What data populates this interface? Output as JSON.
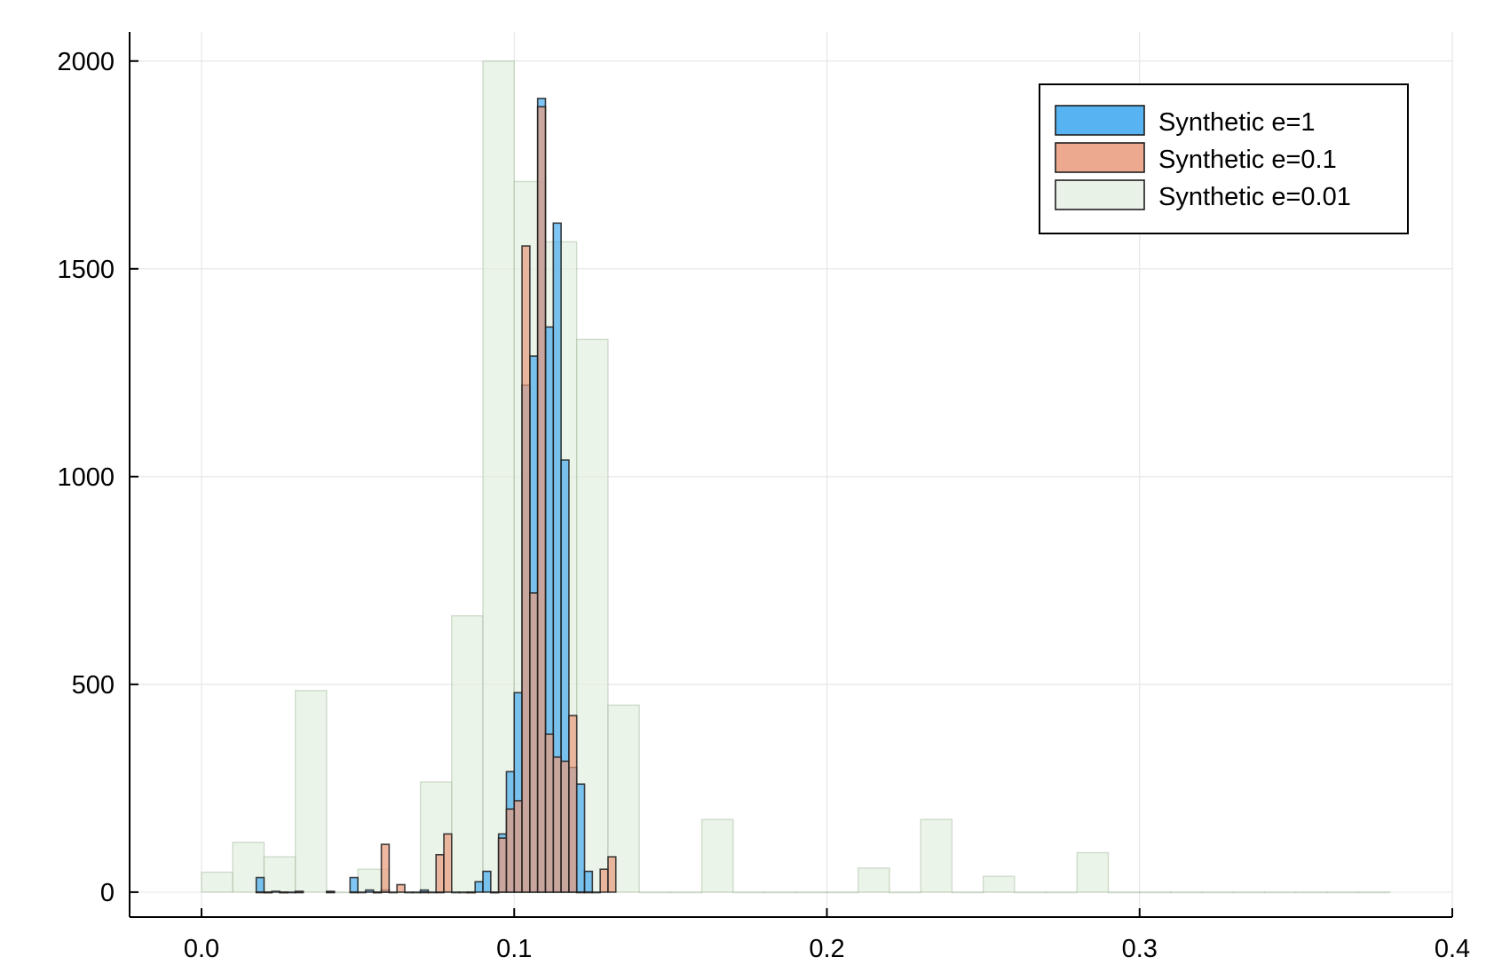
{
  "chart_data": {
    "type": "bar",
    "bin_width": 0.0025,
    "xlim": [
      -0.023,
      0.4
    ],
    "ylim": [
      -60,
      2070
    ],
    "x_ticks": [
      0.0,
      0.1,
      0.2,
      0.3,
      0.4
    ],
    "x_tick_labels": [
      "0.0",
      "0.1",
      "0.2",
      "0.3",
      "0.4"
    ],
    "y_ticks": [
      0,
      500,
      1000,
      1500,
      2000
    ],
    "y_tick_labels": [
      "0",
      "500",
      "1000",
      "1500",
      "2000"
    ],
    "grid": true,
    "legend_position": "top-right",
    "series": [
      {
        "name": "Synthetic e=0.01",
        "color": "#e3efe0",
        "stroke": "#9fb59a",
        "opacity": 0.7,
        "bin_width": 0.01,
        "bins": [
          [
            0.0,
            48
          ],
          [
            0.01,
            120
          ],
          [
            0.02,
            85
          ],
          [
            0.03,
            485
          ],
          [
            0.04,
            0
          ],
          [
            0.05,
            55
          ],
          [
            0.06,
            0
          ],
          [
            0.07,
            265
          ],
          [
            0.08,
            665
          ],
          [
            0.09,
            2000
          ],
          [
            0.1,
            1710
          ],
          [
            0.11,
            1565
          ],
          [
            0.12,
            1330
          ],
          [
            0.13,
            450
          ],
          [
            0.14,
            0
          ],
          [
            0.15,
            0
          ],
          [
            0.16,
            175
          ],
          [
            0.17,
            0
          ],
          [
            0.18,
            0
          ],
          [
            0.19,
            0
          ],
          [
            0.2,
            0
          ],
          [
            0.21,
            58
          ],
          [
            0.22,
            0
          ],
          [
            0.23,
            175
          ],
          [
            0.24,
            0
          ],
          [
            0.25,
            38
          ],
          [
            0.26,
            0
          ],
          [
            0.27,
            0
          ],
          [
            0.28,
            95
          ],
          [
            0.29,
            0
          ],
          [
            0.3,
            0
          ],
          [
            0.31,
            0
          ],
          [
            0.32,
            0
          ],
          [
            0.33,
            0
          ],
          [
            0.34,
            0
          ],
          [
            0.35,
            0
          ],
          [
            0.36,
            0
          ],
          [
            0.37,
            0
          ]
        ]
      },
      {
        "name": "Synthetic e=1",
        "color": "#3aa6ef",
        "stroke": "#1f1f1f",
        "opacity": 0.65,
        "bin_width": 0.0025,
        "bins": [
          [
            0.0175,
            35
          ],
          [
            0.02,
            0
          ],
          [
            0.0225,
            2
          ],
          [
            0.025,
            0
          ],
          [
            0.0275,
            0
          ],
          [
            0.03,
            2
          ],
          [
            0.04,
            2
          ],
          [
            0.0475,
            35
          ],
          [
            0.05,
            0
          ],
          [
            0.0525,
            5
          ],
          [
            0.055,
            0
          ],
          [
            0.0575,
            5
          ],
          [
            0.065,
            0
          ],
          [
            0.0675,
            0
          ],
          [
            0.07,
            5
          ],
          [
            0.0725,
            0
          ],
          [
            0.075,
            0
          ],
          [
            0.08,
            0
          ],
          [
            0.085,
            0
          ],
          [
            0.0875,
            25
          ],
          [
            0.09,
            50
          ],
          [
            0.0925,
            0
          ],
          [
            0.095,
            140
          ],
          [
            0.0975,
            290
          ],
          [
            0.1,
            480
          ],
          [
            0.1025,
            1220
          ],
          [
            0.105,
            1290
          ],
          [
            0.1075,
            1910
          ],
          [
            0.11,
            1360
          ],
          [
            0.1125,
            1610
          ],
          [
            0.115,
            1040
          ],
          [
            0.1175,
            300
          ],
          [
            0.12,
            260
          ],
          [
            0.1225,
            50
          ],
          [
            0.125,
            0
          ]
        ]
      },
      {
        "name": "Synthetic e=0.1",
        "color": "#ea9a7c",
        "stroke": "#1f1f1f",
        "opacity": 0.7,
        "bin_width": 0.0025,
        "bins": [
          [
            0.0175,
            0
          ],
          [
            0.02,
            0
          ],
          [
            0.025,
            0
          ],
          [
            0.03,
            0
          ],
          [
            0.04,
            0
          ],
          [
            0.0475,
            0
          ],
          [
            0.055,
            0
          ],
          [
            0.0575,
            115
          ],
          [
            0.06,
            0
          ],
          [
            0.0625,
            18
          ],
          [
            0.07,
            0
          ],
          [
            0.075,
            90
          ],
          [
            0.0775,
            140
          ],
          [
            0.0825,
            0
          ],
          [
            0.085,
            0
          ],
          [
            0.0925,
            0
          ],
          [
            0.095,
            130
          ],
          [
            0.0975,
            200
          ],
          [
            0.1,
            220
          ],
          [
            0.1025,
            1555
          ],
          [
            0.105,
            720
          ],
          [
            0.1075,
            1890
          ],
          [
            0.11,
            380
          ],
          [
            0.1125,
            325
          ],
          [
            0.115,
            315
          ],
          [
            0.1175,
            425
          ],
          [
            0.12,
            0
          ],
          [
            0.1225,
            0
          ],
          [
            0.1275,
            55
          ],
          [
            0.13,
            85
          ]
        ]
      }
    ]
  }
}
